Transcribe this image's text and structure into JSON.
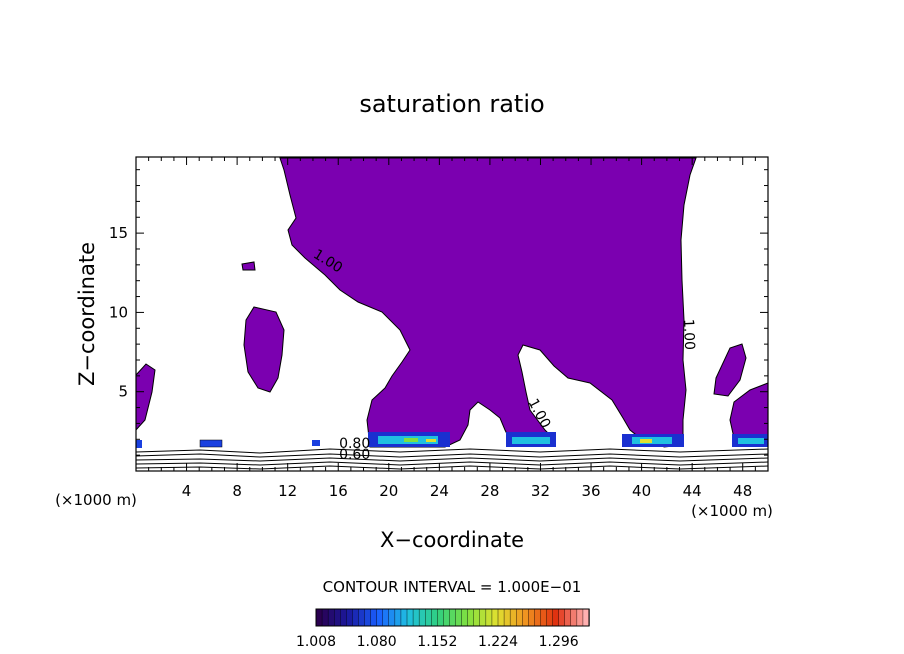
{
  "chart_data": {
    "type": "contour",
    "title": "saturation ratio",
    "xlabel": "X−coordinate",
    "ylabel": "Z−coordinate",
    "x_unit_left": "(×1000 m)",
    "x_unit_right": "(×1000 m)",
    "xlim": [
      0,
      50
    ],
    "ylim": [
      0,
      19.8
    ],
    "x_ticks": [
      4,
      8,
      12,
      16,
      20,
      24,
      28,
      32,
      36,
      40,
      44,
      48
    ],
    "y_ticks": [
      5,
      10,
      15
    ],
    "contour_labels": [
      {
        "text": "1.00",
        "x": 15.0,
        "y": 13.0,
        "rotation": 32
      },
      {
        "text": "1.00",
        "x": 43.4,
        "y": 8.6,
        "rotation": 88
      },
      {
        "text": "1.00",
        "x": 31.6,
        "y": 3.5,
        "rotation": 62
      },
      {
        "text": "0.80",
        "x": 17.3,
        "y": 1.45,
        "rotation": 0
      },
      {
        "text": "0.60",
        "x": 17.3,
        "y": 0.75,
        "rotation": 0
      }
    ],
    "contour_interval_text": "CONTOUR INTERVAL = 1.000E−01",
    "colorbar": {
      "min": 1.008,
      "max": 1.332,
      "tick_labels": [
        "1.008",
        "1.080",
        "1.152",
        "1.224",
        "1.296"
      ],
      "colors": [
        "#2a0050",
        "#1a1aa0",
        "#1a60ff",
        "#20c0e0",
        "#30d080",
        "#80e040",
        "#e0e030",
        "#f09020",
        "#e03010",
        "#ffb0b0"
      ]
    },
    "fill_color": "#7b00b0",
    "grid": false
  }
}
